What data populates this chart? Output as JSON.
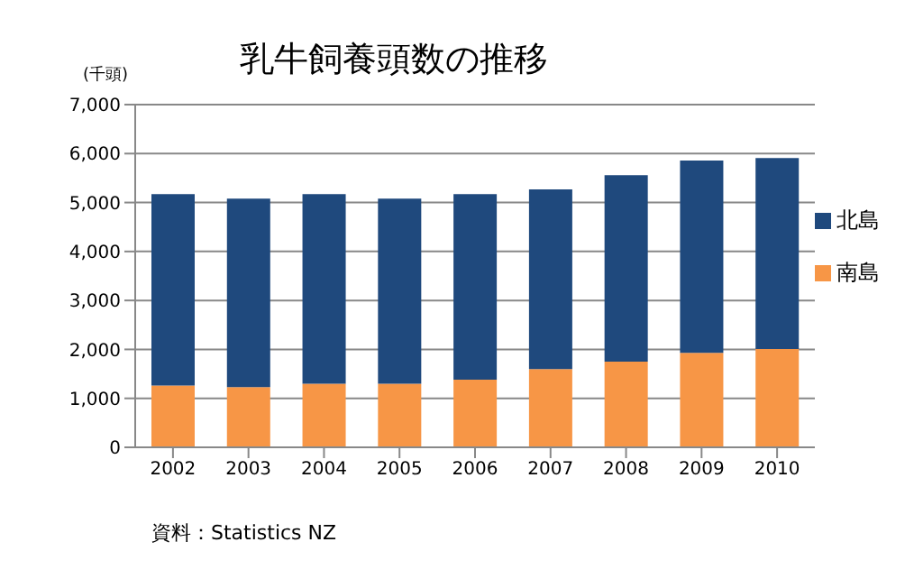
{
  "chart_data": {
    "type": "bar",
    "title": "乳牛飼養頭数の推移",
    "ylabel": "(千頭)",
    "stacked": true,
    "categories": [
      "2002",
      "2003",
      "2004",
      "2005",
      "2006",
      "2007",
      "2008",
      "2009",
      "2010"
    ],
    "series": [
      {
        "name": "南島",
        "color": "#f79646",
        "values": [
          1260,
          1230,
          1300,
          1300,
          1380,
          1600,
          1750,
          1930,
          2010
        ]
      },
      {
        "name": "北島",
        "color": "#1f497d",
        "values": [
          3910,
          3850,
          3870,
          3780,
          3790,
          3670,
          3810,
          3930,
          3900
        ]
      }
    ],
    "ylim": [
      0,
      7000
    ],
    "yticks": [
      0,
      {
        "value": 1000,
        "label": "1,000"
      },
      {
        "value": 2000,
        "label": "2,000"
      },
      {
        "value": 3000,
        "label": "3,000"
      },
      {
        "value": 4000,
        "label": "4,000"
      },
      {
        "value": 5000,
        "label": "5,000"
      },
      {
        "value": 6000,
        "label": "6,000"
      },
      {
        "value": 7000,
        "label": "7,000"
      }
    ],
    "grid": "y",
    "legend": "right",
    "annotations": [
      "資料：Statistics NZ"
    ]
  }
}
